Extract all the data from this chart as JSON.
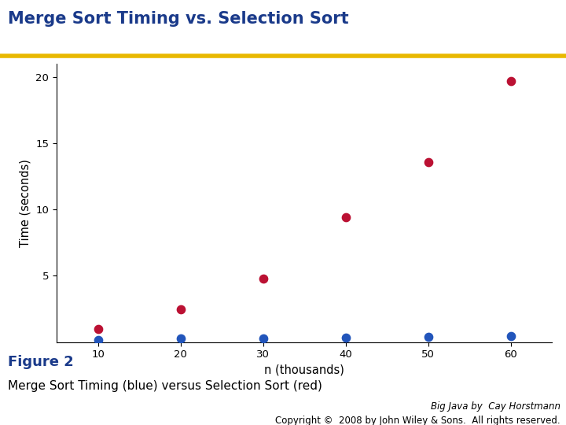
{
  "title": "Merge Sort Timing vs. Selection Sort",
  "title_color": "#1A3A8A",
  "title_fontsize": 15,
  "title_bold": true,
  "header_line_color": "#E8B800",
  "xlabel": "n (thousands)",
  "ylabel": "Time (seconds)",
  "xlim": [
    5,
    65
  ],
  "ylim": [
    0,
    21
  ],
  "xticks": [
    10,
    20,
    30,
    40,
    50,
    60
  ],
  "yticks": [
    5,
    10,
    15,
    20
  ],
  "merge_sort_x": [
    10,
    20,
    30,
    40,
    50,
    60
  ],
  "merge_sort_y": [
    0.15,
    0.25,
    0.3,
    0.35,
    0.4,
    0.45
  ],
  "selection_sort_x": [
    10,
    20,
    30,
    40,
    50,
    60
  ],
  "selection_sort_y": [
    1.0,
    2.5,
    4.8,
    9.4,
    13.6,
    19.7
  ],
  "merge_color": "#2255BB",
  "selection_color": "#BB1133",
  "dot_size": 55,
  "figure_label": "Figure 2",
  "figure_label_color": "#1A3A8A",
  "figure_label_fontsize": 13,
  "figure_caption": "Merge Sort Timing (blue) versus Selection Sort (red)",
  "figure_caption_fontsize": 11,
  "copyright_line1": "Big Java by  Cay Horstmann",
  "copyright_line2": "Copyright ©  2008 by John Wiley & Sons.  All rights reserved.",
  "copyright_fontsize": 8.5,
  "background_color": "#FFFFFF"
}
